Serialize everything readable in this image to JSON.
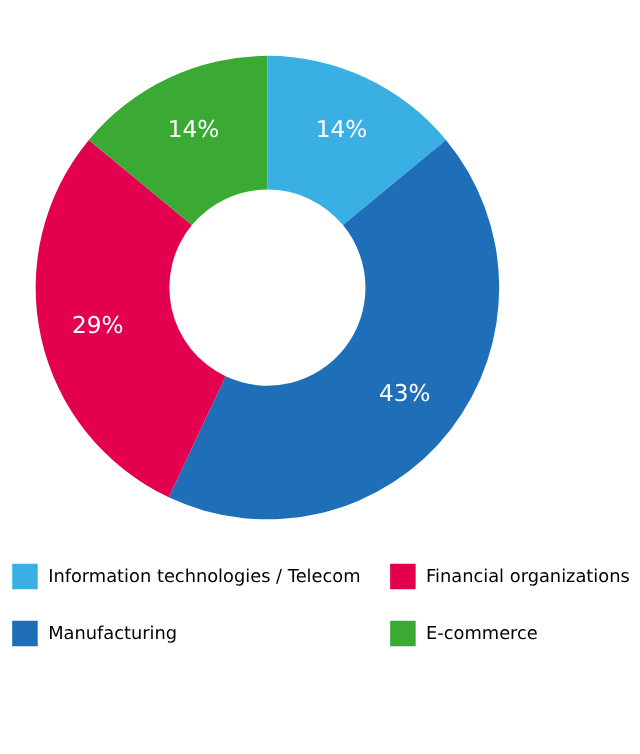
{
  "chart_data": {
    "type": "donut",
    "categories": [
      "Information technologies / Telecom",
      "Manufacturing",
      "Financial organizations",
      "E-commerce"
    ],
    "values": [
      14,
      43,
      29,
      14
    ],
    "value_labels": [
      "14%",
      "43%",
      "29%",
      "14%"
    ],
    "colors": [
      "#3aafe3",
      "#1e6fb8",
      "#e2004f",
      "#3aaa35"
    ],
    "legend": "bottom"
  }
}
